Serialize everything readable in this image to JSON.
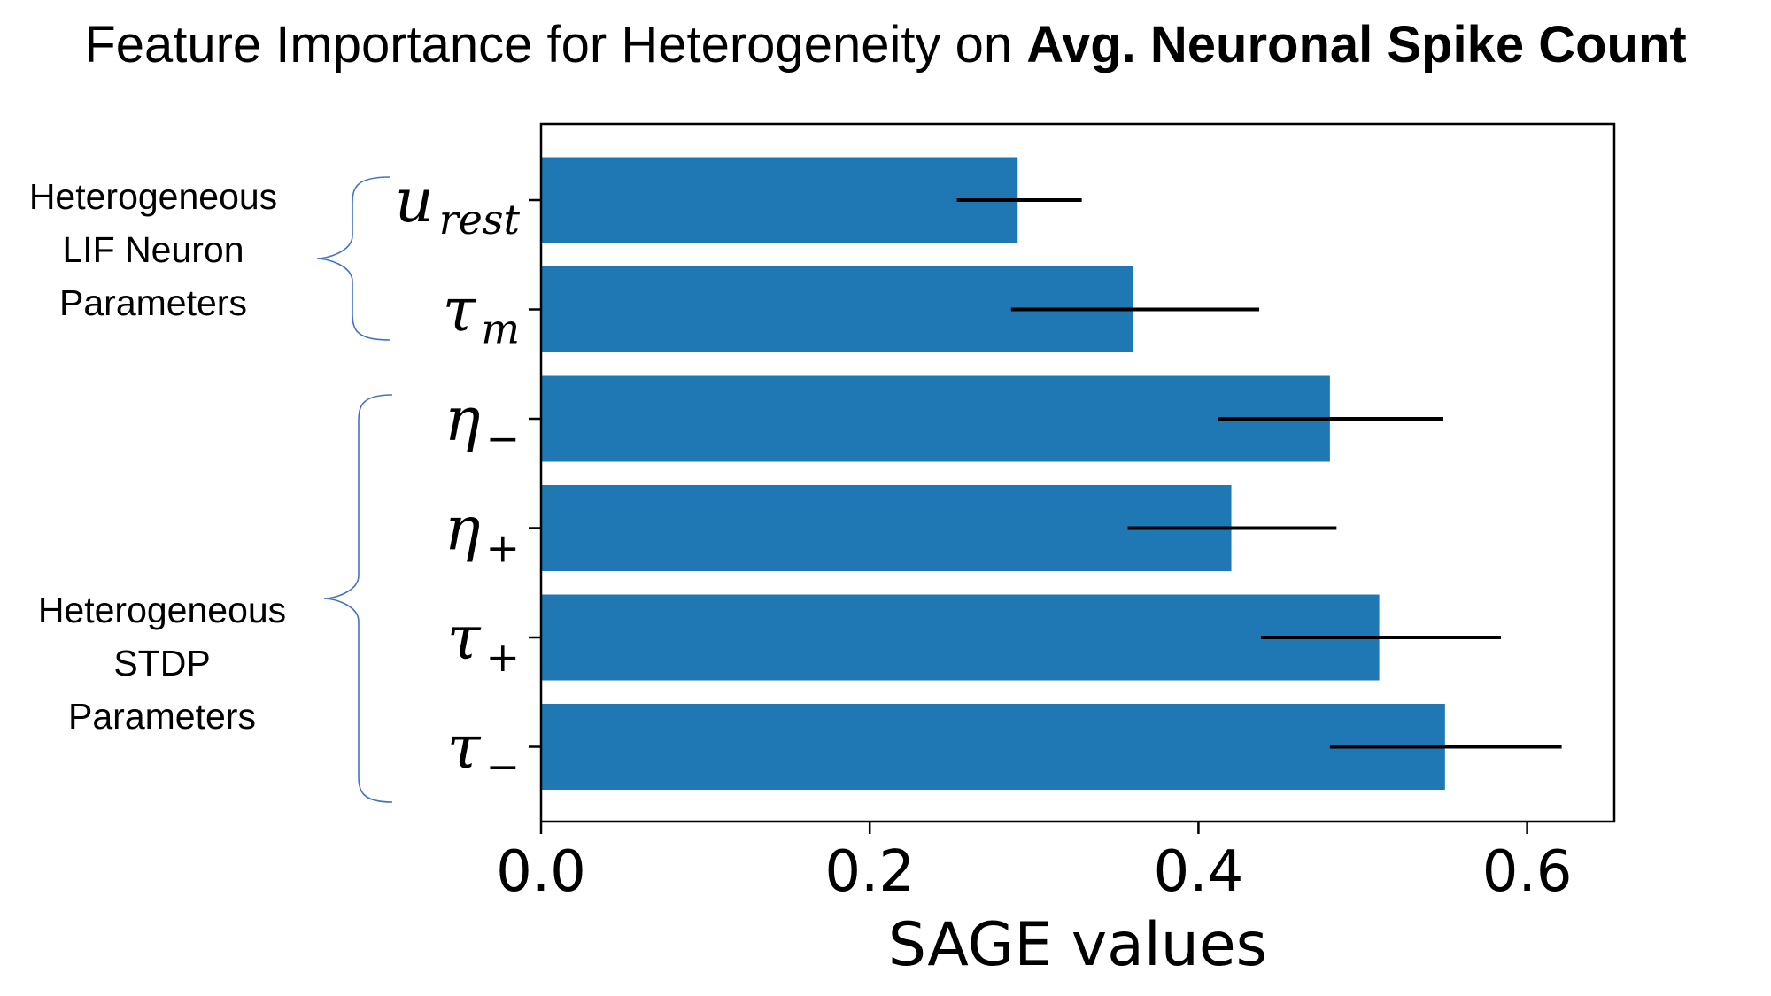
{
  "title": {
    "prefix": "Feature Importance for Heterogeneity on ",
    "emphasis": "Avg. Neuronal Spike Count"
  },
  "groups": [
    {
      "lines": [
        "Heterogeneous",
        "LIF Neuron",
        "Parameters"
      ],
      "categories": [
        0,
        1
      ]
    },
    {
      "lines": [
        "Heterogeneous",
        "STDP",
        "Parameters"
      ],
      "categories": [
        2,
        3,
        4,
        5
      ]
    }
  ],
  "colors": {
    "bar": "#1f77b4",
    "error": "#000000",
    "brace": "#4472c4"
  },
  "chart_data": {
    "type": "bar",
    "orientation": "horizontal",
    "categories": [
      "u_rest",
      "τ_m",
      "η_−",
      "η_+",
      "τ_+",
      "τ_−"
    ],
    "category_labels": [
      {
        "main": "u",
        "sub": "rest"
      },
      {
        "main": "τ",
        "sub": "m"
      },
      {
        "main": "η",
        "sub": "−"
      },
      {
        "main": "η",
        "sub": "+"
      },
      {
        "main": "τ",
        "sub": "+"
      },
      {
        "main": "τ",
        "sub": "−"
      }
    ],
    "values": [
      0.29,
      0.36,
      0.48,
      0.42,
      0.51,
      0.55
    ],
    "error_low": [
      0.253,
      0.286,
      0.412,
      0.357,
      0.438,
      0.48
    ],
    "error_high": [
      0.329,
      0.437,
      0.549,
      0.484,
      0.584,
      0.621
    ],
    "xlabel": "SAGE values",
    "ylabel": "",
    "xlim": [
      0,
      0.653
    ],
    "xticks": [
      0.0,
      0.2,
      0.4,
      0.6
    ],
    "xtick_labels": [
      "0.0",
      "0.2",
      "0.4",
      "0.6"
    ],
    "grid": false,
    "legend": "none"
  }
}
